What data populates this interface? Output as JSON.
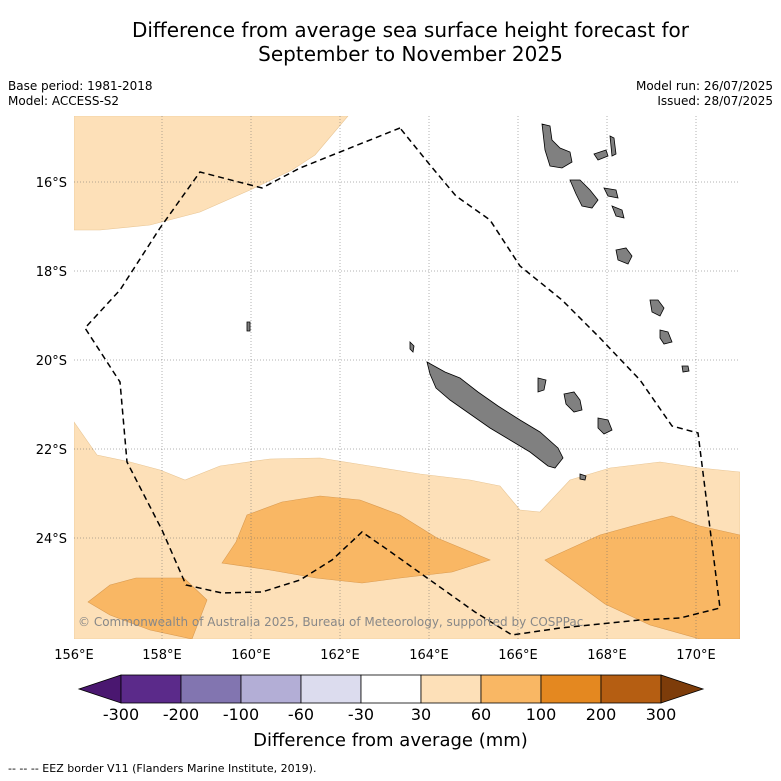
{
  "title_line1": "Difference from average sea surface height forecast for",
  "title_line2": "September to November 2025",
  "base_period": "Base period: 1981-2018",
  "model": "Model: ACCESS-S2",
  "model_run": "Model run: 26/07/2025",
  "issued": "Issued: 28/07/2025",
  "lat_labels": [
    "16°S",
    "18°S",
    "20°S",
    "22°S",
    "24°S"
  ],
  "lon_labels": [
    "156°E",
    "158°E",
    "160°E",
    "162°E",
    "164°E",
    "166°E",
    "168°E",
    "170°E"
  ],
  "copyright": "© Commonwealth of Australia 2025, Bureau of Meteorology, supported by COSPPac",
  "colorbar": {
    "ticks": [
      "-300",
      "-200",
      "-100",
      "-60",
      "-30",
      "30",
      "60",
      "100",
      "200",
      "300"
    ],
    "colors": [
      "#4a1770",
      "#5b2a8a",
      "#8275b0",
      "#b3aed6",
      "#dcdcee",
      "#ffffff",
      "#fde0b8",
      "#f9b764",
      "#e48820",
      "#b55e12",
      "#7d3c0a"
    ],
    "label": "Difference from average (mm)"
  },
  "footnote": "--  --  -- EEZ border V11 (Flanders Marine Institute, 2019).",
  "land_color": "#808080"
}
